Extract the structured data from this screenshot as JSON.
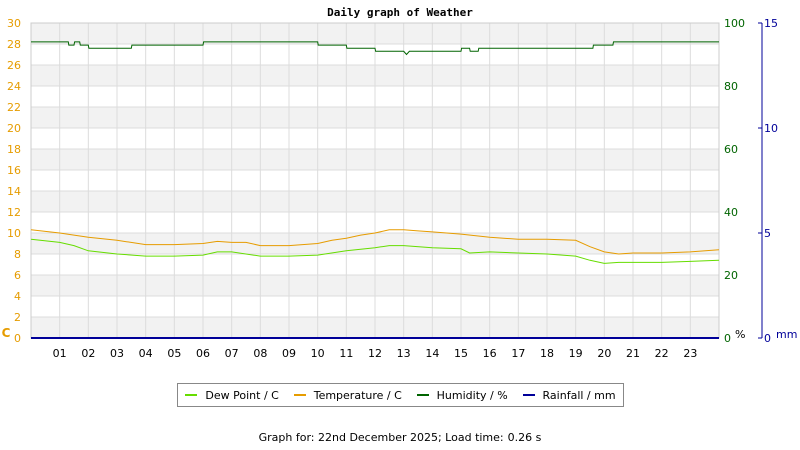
{
  "chart_data": {
    "type": "line",
    "title": "Daily graph of Weather",
    "x_ticks": [
      "01",
      "02",
      "03",
      "04",
      "05",
      "06",
      "07",
      "08",
      "09",
      "10",
      "11",
      "12",
      "13",
      "14",
      "15",
      "16",
      "17",
      "18",
      "19",
      "20",
      "21",
      "22",
      "23"
    ],
    "axes": {
      "temperature": {
        "unit_label": "C",
        "min": 0,
        "max": 30,
        "ticks": [
          0,
          2,
          4,
          6,
          8,
          10,
          12,
          14,
          16,
          18,
          20,
          22,
          24,
          26,
          28,
          30
        ],
        "color": "#e69c00"
      },
      "humidity": {
        "unit_label": "%",
        "min": 0,
        "max": 100,
        "ticks": [
          0,
          20,
          40,
          60,
          80,
          100
        ],
        "color": "#006400"
      },
      "rainfall": {
        "unit_label": "mm",
        "min": 0,
        "max": 15,
        "ticks": [
          0,
          5,
          10,
          15
        ],
        "color": "#000099"
      }
    },
    "grid": true,
    "series": [
      {
        "name": "Dew Point / C",
        "axis": "temperature",
        "color": "#66dd00",
        "points": [
          [
            0,
            9.4
          ],
          [
            1,
            9.1
          ],
          [
            1.5,
            8.8
          ],
          [
            2,
            8.3
          ],
          [
            3,
            8.0
          ],
          [
            4,
            7.8
          ],
          [
            5,
            7.8
          ],
          [
            6,
            7.9
          ],
          [
            6.5,
            8.2
          ],
          [
            7,
            8.2
          ],
          [
            8,
            7.8
          ],
          [
            9,
            7.8
          ],
          [
            10,
            7.9
          ],
          [
            11,
            8.3
          ],
          [
            12,
            8.6
          ],
          [
            12.5,
            8.8
          ],
          [
            13,
            8.8
          ],
          [
            14,
            8.6
          ],
          [
            15,
            8.5
          ],
          [
            15.3,
            8.1
          ],
          [
            16,
            8.2
          ],
          [
            17,
            8.1
          ],
          [
            18,
            8.0
          ],
          [
            19,
            7.8
          ],
          [
            19.5,
            7.4
          ],
          [
            20,
            7.1
          ],
          [
            20.5,
            7.2
          ],
          [
            21,
            7.2
          ],
          [
            22,
            7.2
          ],
          [
            23,
            7.3
          ],
          [
            24,
            7.4
          ]
        ]
      },
      {
        "name": "Temperature / C",
        "axis": "temperature",
        "color": "#e69c00",
        "points": [
          [
            0,
            10.3
          ],
          [
            1,
            10.0
          ],
          [
            2,
            9.6
          ],
          [
            3,
            9.3
          ],
          [
            4,
            8.9
          ],
          [
            5,
            8.9
          ],
          [
            6,
            9.0
          ],
          [
            6.5,
            9.2
          ],
          [
            7,
            9.1
          ],
          [
            7.5,
            9.1
          ],
          [
            8,
            8.8
          ],
          [
            9,
            8.8
          ],
          [
            10,
            9.0
          ],
          [
            10.5,
            9.3
          ],
          [
            11,
            9.5
          ],
          [
            11.5,
            9.8
          ],
          [
            12,
            10.0
          ],
          [
            12.5,
            10.3
          ],
          [
            13,
            10.3
          ],
          [
            13.5,
            10.2
          ],
          [
            14,
            10.1
          ],
          [
            15,
            9.9
          ],
          [
            16,
            9.6
          ],
          [
            17,
            9.4
          ],
          [
            18,
            9.4
          ],
          [
            19,
            9.3
          ],
          [
            19.5,
            8.7
          ],
          [
            20,
            8.2
          ],
          [
            20.5,
            8.0
          ],
          [
            21,
            8.1
          ],
          [
            22,
            8.1
          ],
          [
            23,
            8.2
          ],
          [
            24,
            8.4
          ]
        ]
      },
      {
        "name": "Humidity / %",
        "axis": "humidity",
        "color": "#006400",
        "points": [
          [
            0,
            94
          ],
          [
            1.3,
            94
          ],
          [
            1.32,
            93
          ],
          [
            1.5,
            93
          ],
          [
            1.52,
            94
          ],
          [
            1.7,
            94
          ],
          [
            1.72,
            93
          ],
          [
            2,
            93
          ],
          [
            2.02,
            92
          ],
          [
            3,
            92
          ],
          [
            3.5,
            92
          ],
          [
            3.52,
            93
          ],
          [
            6,
            93
          ],
          [
            6.02,
            94
          ],
          [
            10,
            94
          ],
          [
            10.02,
            93
          ],
          [
            11,
            93
          ],
          [
            11.02,
            92
          ],
          [
            12,
            92
          ],
          [
            12.02,
            91
          ],
          [
            13,
            91
          ],
          [
            13.1,
            90
          ],
          [
            13.2,
            91
          ],
          [
            15,
            91
          ],
          [
            15.02,
            92
          ],
          [
            15.3,
            92
          ],
          [
            15.32,
            91
          ],
          [
            15.6,
            91
          ],
          [
            15.62,
            92
          ],
          [
            16.3,
            92
          ],
          [
            16.32,
            92
          ],
          [
            17,
            92
          ],
          [
            17.02,
            92
          ],
          [
            17.5,
            92
          ],
          [
            17.52,
            92
          ],
          [
            19,
            92
          ],
          [
            19.02,
            92
          ],
          [
            19.6,
            92
          ],
          [
            19.62,
            93
          ],
          [
            20.3,
            93
          ],
          [
            20.32,
            94
          ],
          [
            24,
            94
          ]
        ]
      },
      {
        "name": "Rainfall / mm",
        "axis": "rainfall",
        "color": "#000099",
        "points": [
          [
            0,
            0
          ],
          [
            24,
            0
          ]
        ]
      }
    ]
  },
  "legend": {
    "items": [
      {
        "label": "Dew Point / C",
        "color": "#66dd00"
      },
      {
        "label": "Temperature / C",
        "color": "#e69c00"
      },
      {
        "label": "Humidity / %",
        "color": "#006400"
      },
      {
        "label": "Rainfall / mm",
        "color": "#000099"
      }
    ]
  },
  "footer": {
    "label": "Graph for: 22nd December 2025; Load time:",
    "load_time": "0.26 s"
  }
}
